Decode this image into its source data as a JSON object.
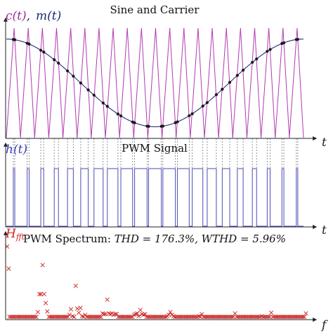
{
  "chart_data": [
    {
      "type": "line",
      "title": "Sine and Carrier",
      "ylabel_c": "c(t)",
      "ylabel_sep": ",",
      "ylabel_m": "m(t)",
      "xlabel": "t",
      "carrier": {
        "name": "c(t)",
        "periods": 21,
        "min": 0,
        "max": 1,
        "color": "#b23ab2"
      },
      "modulator": {
        "name": "m(t)",
        "offset": 0.5,
        "amplitude": 0.4,
        "phase_deg": 90,
        "color": "#1e2a78"
      },
      "sample_marker_color": "#1a1a1a",
      "guide_line_color": "#7a7a7a",
      "grid": false
    },
    {
      "type": "line",
      "title": "PWM Signal",
      "ylabel": "h(t)",
      "xlabel": "t",
      "levels": [
        0,
        1
      ],
      "pulses": 21,
      "color": "#4a4ab8",
      "grid": false
    },
    {
      "type": "scatter",
      "title_prefix": "PWM Spectrum: ",
      "title_formula": "THD = 176.3%,  WTHD = 5.96%",
      "thd_percent": 176.3,
      "wthd_percent": 5.96,
      "ylabel": "H",
      "ylabel_sub": "fft",
      "xlabel": "f",
      "marker": "x",
      "color": "#cc2222",
      "points": [
        [
          0.5,
          105
        ],
        [
          1.5,
          73
        ],
        [
          2,
          3
        ],
        [
          3,
          3
        ],
        [
          4,
          3
        ],
        [
          5,
          3
        ],
        [
          6,
          3
        ],
        [
          7,
          3
        ],
        [
          8,
          3
        ],
        [
          9,
          3
        ],
        [
          10,
          3
        ],
        [
          11,
          3
        ],
        [
          12,
          3
        ],
        [
          13,
          3
        ],
        [
          14,
          3
        ],
        [
          15,
          3
        ],
        [
          16,
          3
        ],
        [
          17,
          3
        ],
        [
          18,
          3
        ],
        [
          19,
          3
        ],
        [
          20,
          10
        ],
        [
          21,
          36
        ],
        [
          22,
          36
        ],
        [
          23,
          78
        ],
        [
          24,
          36
        ],
        [
          25,
          23
        ],
        [
          26,
          11
        ],
        [
          27,
          3
        ],
        [
          28,
          3
        ],
        [
          29,
          3
        ],
        [
          30,
          3
        ],
        [
          31,
          3
        ],
        [
          32,
          3
        ],
        [
          33,
          3
        ],
        [
          34,
          3
        ],
        [
          35,
          3
        ],
        [
          36,
          3
        ],
        [
          37,
          3
        ],
        [
          38,
          3
        ],
        [
          39,
          3
        ],
        [
          40,
          6
        ],
        [
          41,
          14
        ],
        [
          42,
          4
        ],
        [
          43,
          3
        ],
        [
          44,
          48
        ],
        [
          45,
          15
        ],
        [
          46,
          9
        ],
        [
          47,
          16
        ],
        [
          48,
          4
        ],
        [
          49,
          3
        ],
        [
          50,
          6
        ],
        [
          51,
          3
        ],
        [
          52,
          3
        ],
        [
          53,
          3
        ],
        [
          54,
          3
        ],
        [
          55,
          3
        ],
        [
          56,
          3
        ],
        [
          57,
          3
        ],
        [
          58,
          3
        ],
        [
          59,
          3
        ],
        [
          60,
          3
        ],
        [
          61,
          8
        ],
        [
          62,
          7
        ],
        [
          63,
          7
        ],
        [
          64,
          28
        ],
        [
          65,
          8
        ],
        [
          66,
          7
        ],
        [
          67,
          8
        ],
        [
          68,
          6
        ],
        [
          69,
          7
        ],
        [
          70,
          7
        ],
        [
          71,
          3
        ],
        [
          72,
          3
        ],
        [
          73,
          3
        ],
        [
          74,
          3
        ],
        [
          75,
          3
        ],
        [
          76,
          3
        ],
        [
          77,
          3
        ],
        [
          78,
          3
        ],
        [
          79,
          3
        ],
        [
          80,
          3
        ],
        [
          81,
          6
        ],
        [
          82,
          7
        ],
        [
          83,
          8
        ],
        [
          84,
          4
        ],
        [
          85,
          13
        ],
        [
          86,
          7
        ],
        [
          87,
          6
        ],
        [
          88,
          7
        ],
        [
          89,
          3
        ],
        [
          90,
          3
        ],
        [
          91,
          3
        ],
        [
          92,
          3
        ],
        [
          93,
          3
        ],
        [
          94,
          3
        ],
        [
          95,
          3
        ],
        [
          96,
          3
        ],
        [
          97,
          3
        ],
        [
          98,
          3
        ],
        [
          99,
          3
        ],
        [
          100,
          3
        ],
        [
          101,
          3
        ],
        [
          102,
          4
        ],
        [
          103,
          6
        ],
        [
          104,
          10
        ],
        [
          105,
          6
        ],
        [
          106,
          4
        ],
        [
          107,
          3
        ],
        [
          108,
          3
        ],
        [
          109,
          3
        ],
        [
          110,
          3
        ],
        [
          111,
          3
        ],
        [
          112,
          3
        ],
        [
          113,
          3
        ],
        [
          114,
          3
        ],
        [
          115,
          3
        ],
        [
          116,
          3
        ],
        [
          117,
          3
        ],
        [
          118,
          3
        ],
        [
          119,
          3
        ],
        [
          120,
          3
        ],
        [
          121,
          3
        ],
        [
          122,
          4
        ],
        [
          123,
          3
        ],
        [
          124,
          7
        ],
        [
          125,
          3
        ],
        [
          126,
          3
        ],
        [
          127,
          3
        ],
        [
          128,
          3
        ],
        [
          129,
          3
        ],
        [
          130,
          3
        ],
        [
          131,
          3
        ],
        [
          132,
          3
        ],
        [
          133,
          3
        ],
        [
          134,
          3
        ],
        [
          135,
          3
        ],
        [
          136,
          3
        ],
        [
          137,
          3
        ],
        [
          138,
          3
        ],
        [
          139,
          3
        ],
        [
          140,
          3
        ],
        [
          141,
          3
        ],
        [
          142,
          3
        ],
        [
          143,
          3
        ],
        [
          144,
          3
        ],
        [
          145,
          8
        ],
        [
          146,
          3
        ],
        [
          147,
          3
        ],
        [
          148,
          3
        ],
        [
          149,
          3
        ],
        [
          150,
          3
        ],
        [
          151,
          3
        ],
        [
          152,
          3
        ],
        [
          153,
          3
        ],
        [
          154,
          3
        ],
        [
          155,
          3
        ],
        [
          156,
          3
        ],
        [
          157,
          3
        ],
        [
          158,
          3
        ],
        [
          159,
          3
        ],
        [
          160,
          3
        ],
        [
          161,
          3
        ],
        [
          162,
          4
        ],
        [
          163,
          3
        ],
        [
          164,
          3
        ],
        [
          165,
          3
        ],
        [
          166,
          3
        ],
        [
          167,
          3
        ],
        [
          168,
          9
        ],
        [
          169,
          3
        ],
        [
          170,
          3
        ],
        [
          171,
          3
        ],
        [
          172,
          3
        ],
        [
          173,
          3
        ],
        [
          174,
          3
        ],
        [
          175,
          3
        ],
        [
          176,
          3
        ],
        [
          177,
          3
        ],
        [
          178,
          3
        ],
        [
          179,
          3
        ],
        [
          180,
          3
        ],
        [
          181,
          3
        ],
        [
          182,
          3
        ],
        [
          183,
          3
        ],
        [
          184,
          3
        ],
        [
          185,
          3
        ],
        [
          186,
          3
        ],
        [
          187,
          3
        ],
        [
          188,
          3
        ],
        [
          189,
          3
        ],
        [
          190,
          8
        ]
      ],
      "xlim": [
        0,
        192
      ],
      "ylim": [
        0,
        110
      ],
      "grid": false
    }
  ]
}
